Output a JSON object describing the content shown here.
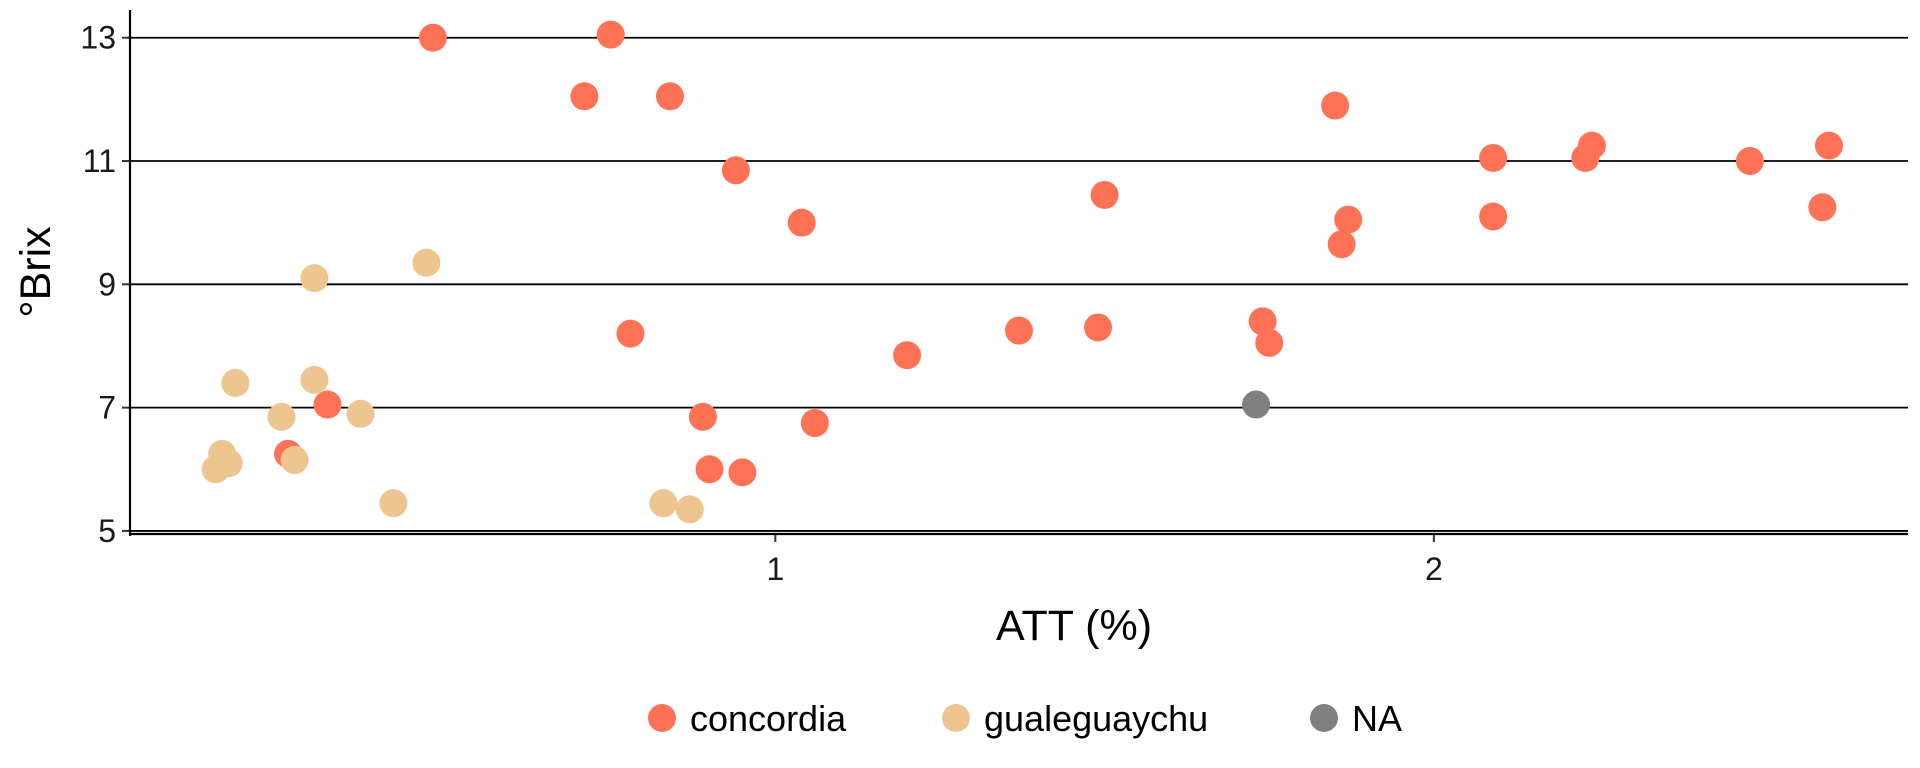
{
  "chart_data": {
    "type": "scatter",
    "title": "",
    "xlabel": "ATT (%)",
    "ylabel": "°Brix",
    "xlim": [
      0.02,
      2.72
    ],
    "ylim": [
      4.95,
      13.45
    ],
    "x_ticks": [
      1,
      2
    ],
    "x_tick_labels": [
      "1",
      "2"
    ],
    "y_ticks": [
      5,
      7,
      9,
      11,
      13
    ],
    "y_tick_labels": [
      "5",
      "7",
      "9",
      "11",
      "13"
    ],
    "grid": "horizontal major lines",
    "legend_position": "bottom",
    "series": [
      {
        "name": "concordia",
        "color": "#FF7256",
        "points": [
          {
            "x": 0.48,
            "y": 13.0
          },
          {
            "x": 0.75,
            "y": 13.05
          },
          {
            "x": 0.71,
            "y": 12.05
          },
          {
            "x": 0.84,
            "y": 12.05
          },
          {
            "x": 0.94,
            "y": 10.85
          },
          {
            "x": 1.04,
            "y": 10.0
          },
          {
            "x": 0.78,
            "y": 8.2
          },
          {
            "x": 0.89,
            "y": 6.85
          },
          {
            "x": 1.06,
            "y": 6.75
          },
          {
            "x": 0.9,
            "y": 6.0
          },
          {
            "x": 0.95,
            "y": 5.95
          },
          {
            "x": 1.2,
            "y": 7.85
          },
          {
            "x": 1.37,
            "y": 8.25
          },
          {
            "x": 1.49,
            "y": 8.3
          },
          {
            "x": 1.5,
            "y": 10.45
          },
          {
            "x": 1.74,
            "y": 8.4
          },
          {
            "x": 1.75,
            "y": 8.05
          },
          {
            "x": 1.85,
            "y": 11.9
          },
          {
            "x": 1.86,
            "y": 9.65
          },
          {
            "x": 1.87,
            "y": 10.05
          },
          {
            "x": 2.09,
            "y": 11.05
          },
          {
            "x": 2.09,
            "y": 10.1
          },
          {
            "x": 2.23,
            "y": 11.05
          },
          {
            "x": 2.24,
            "y": 11.25
          },
          {
            "x": 2.48,
            "y": 11.0
          },
          {
            "x": 2.59,
            "y": 10.25
          },
          {
            "x": 2.6,
            "y": 11.25
          },
          {
            "x": 0.32,
            "y": 7.05
          },
          {
            "x": 0.26,
            "y": 6.25
          }
        ]
      },
      {
        "name": "gualeguaychu",
        "color": "#EEC591",
        "points": [
          {
            "x": 0.47,
            "y": 9.35
          },
          {
            "x": 0.3,
            "y": 9.1
          },
          {
            "x": 0.18,
            "y": 7.4
          },
          {
            "x": 0.3,
            "y": 7.45
          },
          {
            "x": 0.25,
            "y": 6.85
          },
          {
            "x": 0.37,
            "y": 6.9
          },
          {
            "x": 0.16,
            "y": 6.25
          },
          {
            "x": 0.17,
            "y": 6.1
          },
          {
            "x": 0.15,
            "y": 6.0
          },
          {
            "x": 0.27,
            "y": 6.15
          },
          {
            "x": 0.42,
            "y": 5.45
          },
          {
            "x": 0.83,
            "y": 5.45
          },
          {
            "x": 0.87,
            "y": 5.35
          }
        ]
      },
      {
        "name": "NA",
        "color": "#808080",
        "points": [
          {
            "x": 1.73,
            "y": 7.05
          }
        ]
      }
    ]
  }
}
